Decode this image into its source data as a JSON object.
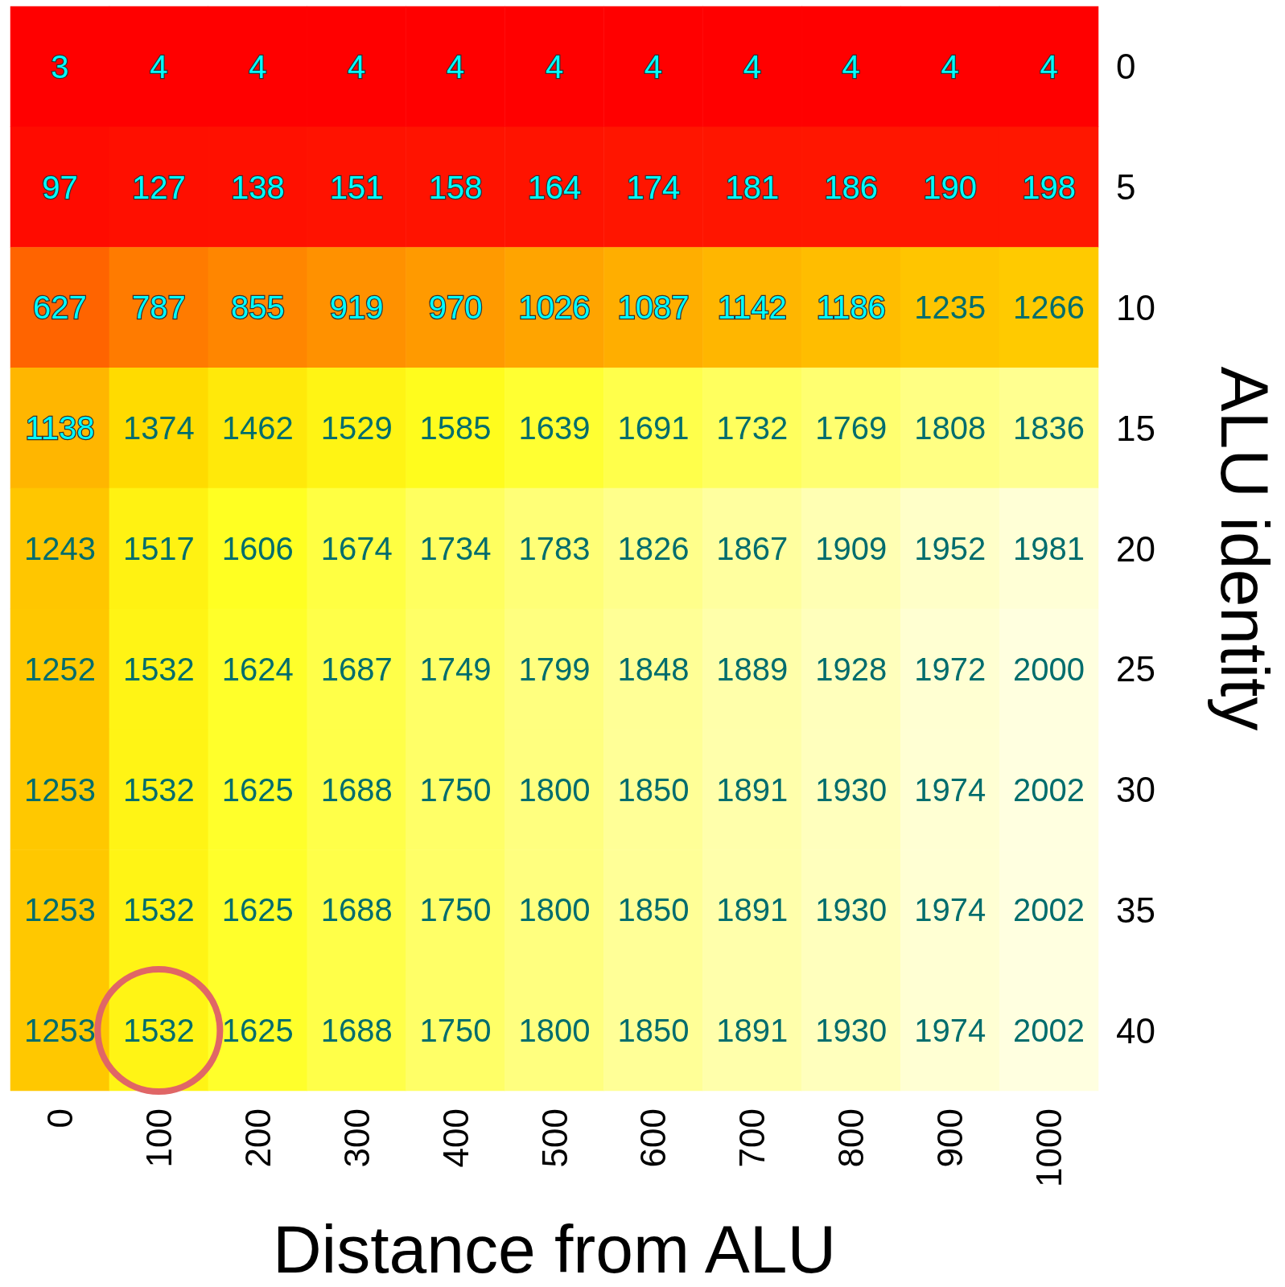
{
  "chart_data": {
    "type": "heatmap",
    "xlabel": "Distance from ALU",
    "ylabel": "ALU identity",
    "data_labels": true,
    "categories": [
      "0",
      "100",
      "200",
      "300",
      "400",
      "500",
      "600",
      "700",
      "800",
      "900",
      "1000"
    ],
    "y_categories": [
      "0",
      "5",
      "10",
      "15",
      "20",
      "25",
      "30",
      "35",
      "40"
    ],
    "cells": [
      [
        3,
        4,
        4,
        4,
        4,
        4,
        4,
        4,
        4,
        4,
        4
      ],
      [
        97,
        127,
        138,
        151,
        158,
        164,
        174,
        181,
        186,
        190,
        198
      ],
      [
        627,
        787,
        855,
        919,
        970,
        1026,
        1087,
        1142,
        1186,
        1235,
        1266
      ],
      [
        1138,
        1374,
        1462,
        1529,
        1585,
        1639,
        1691,
        1732,
        1769,
        1808,
        1836
      ],
      [
        1243,
        1517,
        1606,
        1674,
        1734,
        1783,
        1826,
        1867,
        1909,
        1952,
        1981
      ],
      [
        1252,
        1532,
        1624,
        1687,
        1749,
        1799,
        1848,
        1889,
        1928,
        1972,
        2000
      ],
      [
        1253,
        1532,
        1625,
        1688,
        1750,
        1800,
        1850,
        1891,
        1930,
        1974,
        2002
      ],
      [
        1253,
        1532,
        1625,
        1688,
        1750,
        1800,
        1850,
        1891,
        1930,
        1974,
        2002
      ],
      [
        1253,
        1532,
        1625,
        1688,
        1750,
        1800,
        1850,
        1891,
        1930,
        1974,
        2002
      ]
    ]
  }
}
